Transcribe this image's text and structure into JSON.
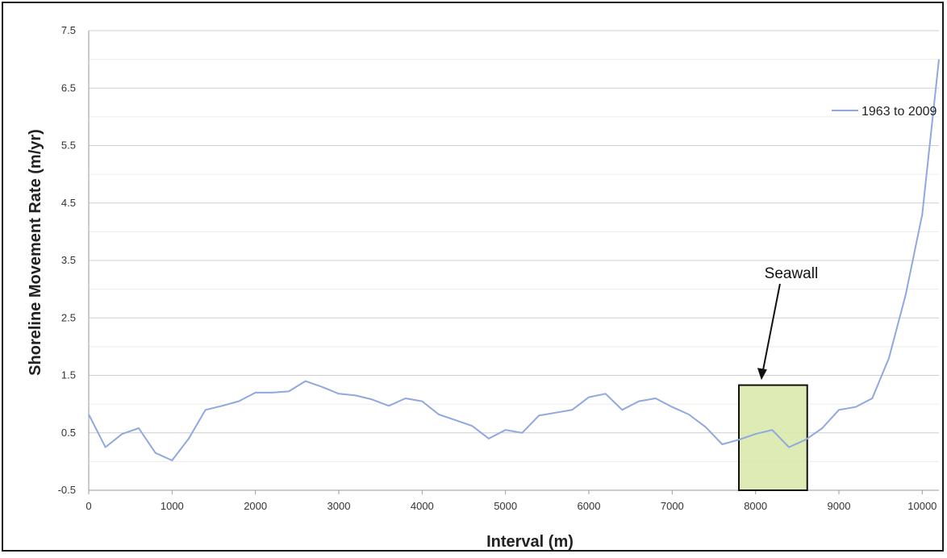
{
  "chart_data": {
    "type": "line",
    "title": "",
    "xlabel": "Interval (m)",
    "ylabel": "Shoreline Movement Rate (m/yr)",
    "xlim": [
      0,
      10200
    ],
    "ylim": [
      -0.5,
      7.5
    ],
    "x_ticks": [
      "0",
      "1000",
      "2000",
      "3000",
      "4000",
      "5000",
      "6000",
      "7000",
      "8000",
      "9000",
      "10000"
    ],
    "y_ticks": [
      "7.5",
      "6.5",
      "5.5",
      "4.5",
      "3.5",
      "2.5",
      "1.5",
      "0.5",
      "-0.5"
    ],
    "grid": true,
    "legend_position": "top-right",
    "series": [
      {
        "name": "1963 to 2009",
        "color": "#8fa8e0",
        "x": [
          0,
          200,
          400,
          600,
          800,
          1000,
          1200,
          1400,
          1600,
          1800,
          2000,
          2200,
          2400,
          2600,
          2800,
          3000,
          3200,
          3400,
          3600,
          3800,
          4000,
          4200,
          4400,
          4600,
          4800,
          5000,
          5200,
          5400,
          5600,
          5800,
          6000,
          6200,
          6400,
          6600,
          6800,
          7000,
          7200,
          7400,
          7600,
          7800,
          8000,
          8200,
          8400,
          8600,
          8800,
          9000,
          9200,
          9400,
          9600,
          9800,
          10000,
          10200
        ],
        "y": [
          0.82,
          0.25,
          0.48,
          0.58,
          0.15,
          0.02,
          0.4,
          0.9,
          0.97,
          1.05,
          1.2,
          1.2,
          1.22,
          1.4,
          1.3,
          1.18,
          1.15,
          1.08,
          0.97,
          1.1,
          1.05,
          0.82,
          0.72,
          0.62,
          0.4,
          0.55,
          0.5,
          0.8,
          0.85,
          0.9,
          1.12,
          1.18,
          0.9,
          1.05,
          1.1,
          0.95,
          0.82,
          0.6,
          0.3,
          0.38,
          0.48,
          0.55,
          0.25,
          0.38,
          0.58,
          0.9,
          0.95,
          1.1,
          1.8,
          2.9,
          4.3,
          7.0
        ]
      }
    ],
    "annotation": {
      "label": "Seawall",
      "x_range": [
        7800,
        8620
      ],
      "y_range": [
        -0.5,
        1.33
      ],
      "arrow_to": [
        8080,
        1.42
      ],
      "fill": "#d8e8a8",
      "border": "#111111"
    }
  }
}
